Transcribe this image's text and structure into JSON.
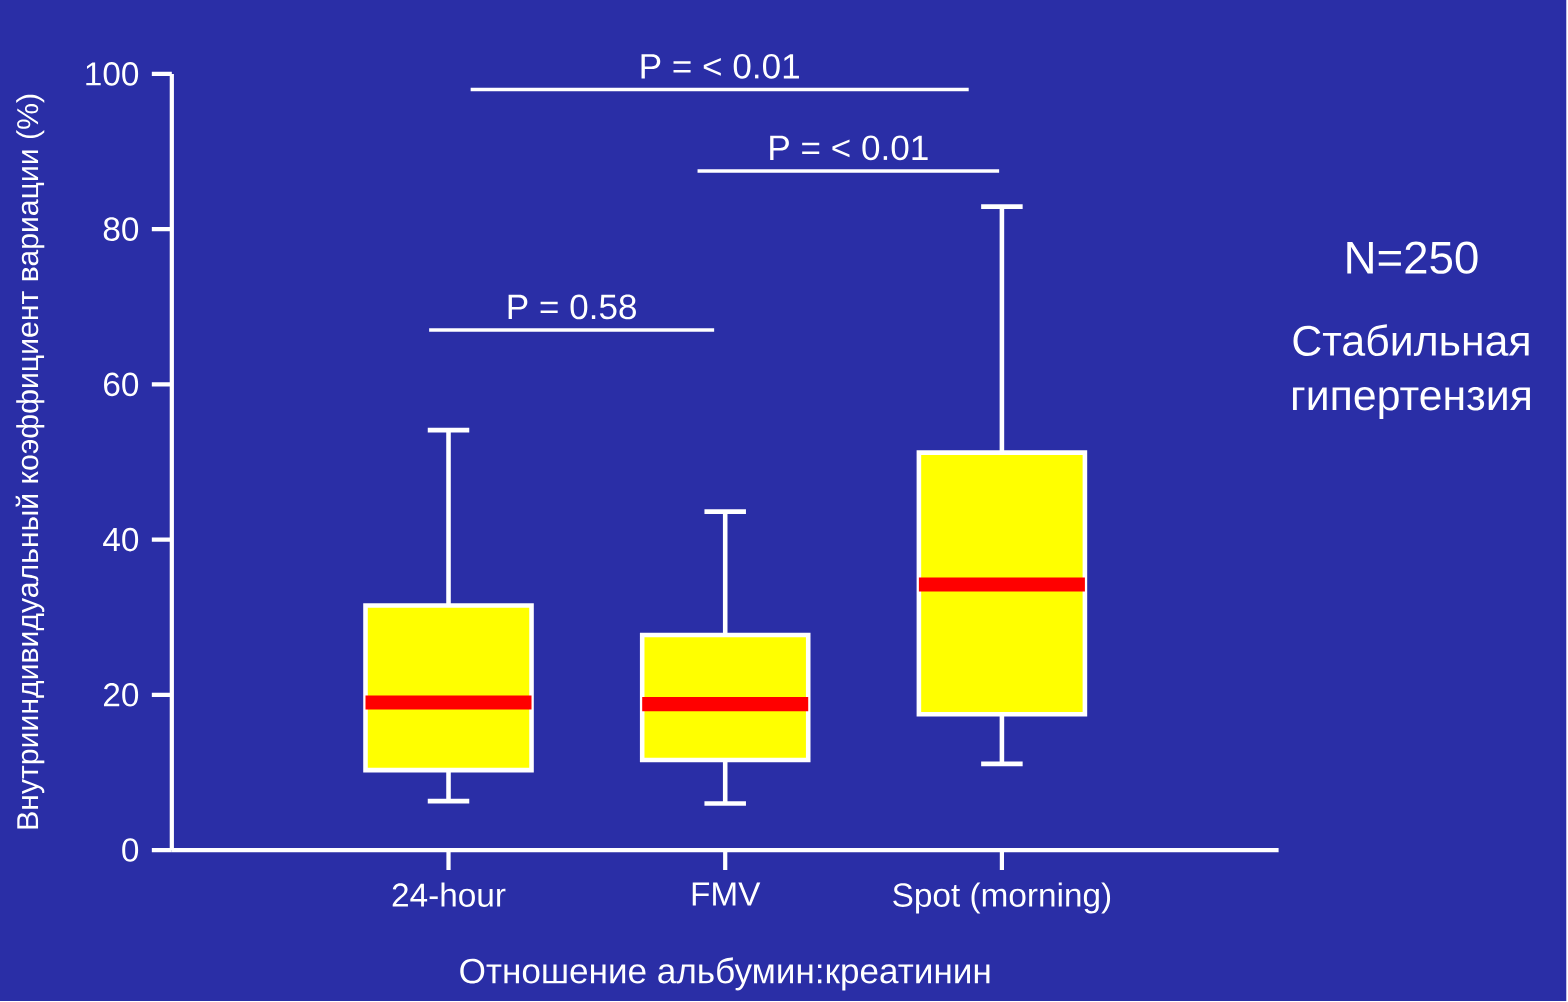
{
  "chart_data": {
    "type": "box",
    "categories": [
      "24-hour",
      "FMV",
      "Spot (morning)"
    ],
    "boxes": [
      {
        "low": 6.3,
        "q1": 10.3,
        "median": 19.0,
        "q3": 31.5,
        "high": 54.1
      },
      {
        "low": 6.0,
        "q1": 11.6,
        "median": 18.8,
        "q3": 27.7,
        "high": 43.6
      },
      {
        "low": 11.1,
        "q1": 17.5,
        "median": 34.2,
        "q3": 51.2,
        "high": 82.9
      }
    ],
    "color": "#ffff00",
    "ylim": [
      0,
      100
    ],
    "yticks": [
      0,
      20,
      40,
      60,
      80,
      100
    ],
    "xlabel": "Отношение альбумин:креатинин",
    "ylabel": "Внутрииндивидуальный коэффициент вариации (%)",
    "annotations": [
      "P = < 0.01",
      "P = < 0.01",
      "P = 0.58",
      "N=250",
      "Стабильная гипертензия"
    ]
  }
}
